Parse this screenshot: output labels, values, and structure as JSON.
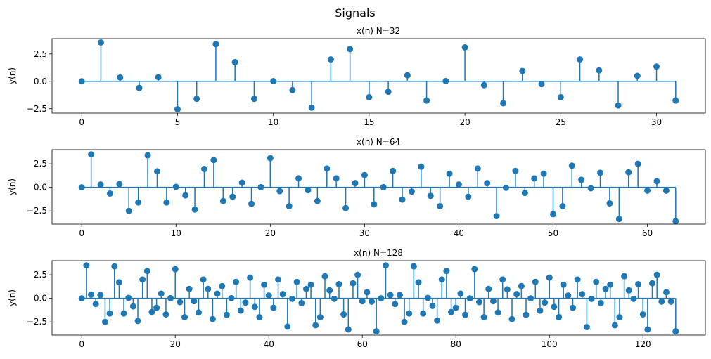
{
  "figure": {
    "suptitle": "Signals"
  },
  "colors": {
    "stem": "#1f77b4",
    "axes": "#000000"
  },
  "chart_data": [
    {
      "type": "stem",
      "title": "x(n) N=32",
      "xlabel": "",
      "ylabel": "y(n)",
      "xlim": [
        -1.55,
        32.55
      ],
      "ylim": [
        -2.9,
        3.9
      ],
      "xticks": [
        0,
        5,
        10,
        15,
        20,
        25,
        30
      ],
      "yticks": [
        -2.5,
        0.0,
        2.5
      ],
      "ytick_labels": [
        "−2.5",
        "0.0",
        "2.5"
      ],
      "baseline": 0,
      "x": [
        0,
        1,
        2,
        3,
        4,
        5,
        6,
        7,
        8,
        9,
        10,
        11,
        12,
        13,
        14,
        15,
        16,
        17,
        18,
        19,
        20,
        21,
        22,
        23,
        24,
        25,
        26,
        27,
        28,
        29,
        30,
        31
      ],
      "values": [
        0.0,
        3.55,
        0.35,
        -0.6,
        0.38,
        -2.55,
        -1.6,
        3.4,
        1.75,
        -1.6,
        0.02,
        -0.8,
        -2.4,
        2.0,
        2.95,
        -1.45,
        -0.95,
        0.55,
        -1.75,
        0.02,
        3.1,
        -0.35,
        -2.0,
        0.95,
        -0.25,
        -1.45,
        2.0,
        1.0,
        -2.2,
        0.5,
        1.35,
        -1.75
      ]
    },
    {
      "type": "stem",
      "title": "x(n) N=64",
      "xlabel": "",
      "ylabel": "y(n)",
      "xlim": [
        -3.15,
        66.15
      ],
      "ylim": [
        -3.9,
        4.0
      ],
      "xticks": [
        0,
        10,
        20,
        30,
        40,
        50,
        60
      ],
      "yticks": [
        -2.5,
        0.0,
        2.5
      ],
      "ytick_labels": [
        "−2.5",
        "0.0",
        "2.5"
      ],
      "baseline": 0,
      "x": [
        0,
        1,
        2,
        3,
        4,
        5,
        6,
        7,
        8,
        9,
        10,
        11,
        12,
        13,
        14,
        15,
        16,
        17,
        18,
        19,
        20,
        21,
        22,
        23,
        24,
        25,
        26,
        27,
        28,
        29,
        30,
        31,
        32,
        33,
        34,
        35,
        36,
        37,
        38,
        39,
        40,
        41,
        42,
        43,
        44,
        45,
        46,
        47,
        48,
        49,
        50,
        51,
        52,
        53,
        54,
        55,
        56,
        57,
        58,
        59,
        60,
        61,
        62,
        63
      ],
      "values": [
        0.0,
        3.5,
        0.3,
        -0.65,
        0.35,
        -2.5,
        -1.6,
        3.4,
        1.7,
        -1.6,
        0.05,
        -0.85,
        -2.35,
        1.95,
        2.9,
        -1.45,
        -1.0,
        0.5,
        -1.75,
        0.02,
        3.1,
        -0.4,
        -2.0,
        0.95,
        -0.3,
        -1.45,
        2.0,
        0.95,
        -2.2,
        0.45,
        1.3,
        -1.8,
        0.02,
        1.75,
        -1.3,
        -0.45,
        2.2,
        -0.9,
        -2.0,
        1.45,
        0.3,
        -1.0,
        2.0,
        0.45,
        -3.05,
        -0.05,
        1.75,
        -0.6,
        0.95,
        1.45,
        -2.85,
        -2.0,
        2.3,
        0.8,
        -0.1,
        1.55,
        -1.7,
        -3.35,
        1.6,
        2.5,
        -0.35,
        0.65,
        -0.35,
        -3.6
      ]
    },
    {
      "type": "stem",
      "title": "x(n) N=128",
      "xlabel": "",
      "ylabel": "y(n)",
      "xlim": [
        -6.35,
        133.35
      ],
      "ylim": [
        -3.9,
        4.0
      ],
      "xticks": [
        0,
        20,
        40,
        60,
        80,
        100,
        120
      ],
      "yticks": [
        -2.5,
        0.0,
        2.5
      ],
      "ytick_labels": [
        "−2.5",
        "0.0",
        "2.5"
      ],
      "baseline": 0,
      "x": [
        0,
        1,
        2,
        3,
        4,
        5,
        6,
        7,
        8,
        9,
        10,
        11,
        12,
        13,
        14,
        15,
        16,
        17,
        18,
        19,
        20,
        21,
        22,
        23,
        24,
        25,
        26,
        27,
        28,
        29,
        30,
        31,
        32,
        33,
        34,
        35,
        36,
        37,
        38,
        39,
        40,
        41,
        42,
        43,
        44,
        45,
        46,
        47,
        48,
        49,
        50,
        51,
        52,
        53,
        54,
        55,
        56,
        57,
        58,
        59,
        60,
        61,
        62,
        63,
        64,
        65,
        66,
        67,
        68,
        69,
        70,
        71,
        72,
        73,
        74,
        75,
        76,
        77,
        78,
        79,
        80,
        81,
        82,
        83,
        84,
        85,
        86,
        87,
        88,
        89,
        90,
        91,
        92,
        93,
        94,
        95,
        96,
        97,
        98,
        99,
        100,
        101,
        102,
        103,
        104,
        105,
        106,
        107,
        108,
        109,
        110,
        111,
        112,
        113,
        114,
        115,
        116,
        117,
        118,
        119,
        120,
        121,
        122,
        123,
        124,
        125,
        126,
        127
      ],
      "values": [
        0.0,
        3.5,
        0.4,
        -0.6,
        0.35,
        -2.5,
        -1.6,
        3.4,
        1.7,
        -1.6,
        0.05,
        -0.85,
        -2.4,
        2.0,
        2.9,
        -1.45,
        -1.0,
        0.5,
        -1.7,
        0.02,
        3.1,
        -0.4,
        -2.0,
        1.0,
        -0.3,
        -1.5,
        2.0,
        1.0,
        -2.2,
        0.5,
        1.3,
        -1.75,
        0.02,
        1.75,
        -1.3,
        -0.45,
        2.2,
        -0.9,
        -2.0,
        1.45,
        0.3,
        -1.0,
        2.0,
        0.45,
        -3.0,
        -0.05,
        1.75,
        -0.5,
        1.0,
        1.45,
        -2.85,
        -2.0,
        2.35,
        0.85,
        -0.05,
        1.5,
        -1.7,
        -3.3,
        1.6,
        2.5,
        -0.3,
        0.65,
        -0.35,
        -3.5,
        0.0,
        3.5,
        0.35,
        -0.6,
        0.35,
        -2.5,
        -1.6,
        3.4,
        1.7,
        -1.6,
        0.05,
        -0.8,
        -2.35,
        2.0,
        2.9,
        -1.45,
        -1.0,
        0.5,
        -1.75,
        0.0,
        3.1,
        -0.4,
        -2.0,
        1.0,
        -0.3,
        -1.5,
        2.0,
        0.95,
        -2.2,
        0.45,
        1.3,
        -1.75,
        0.0,
        1.75,
        -1.3,
        -0.45,
        2.2,
        -0.9,
        -2.0,
        1.45,
        0.3,
        -1.0,
        2.0,
        0.45,
        -3.05,
        -0.05,
        1.75,
        -0.5,
        1.0,
        1.45,
        -2.85,
        -2.0,
        2.35,
        0.85,
        -0.05,
        1.5,
        -1.7,
        -3.3,
        1.6,
        2.5,
        -0.35,
        0.65,
        -0.35,
        -3.5
      ]
    }
  ]
}
